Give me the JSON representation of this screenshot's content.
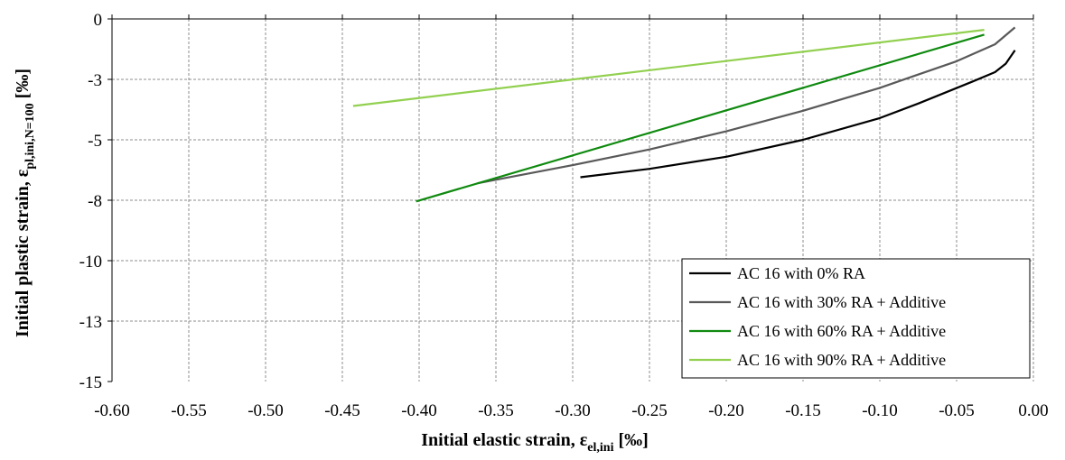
{
  "chart_data": {
    "type": "line",
    "title": "",
    "xlabel": {
      "main": "Initial elastic strain, ε",
      "sub": "el,ini",
      "unit": " [‰]"
    },
    "ylabel": {
      "main": "Initial plastic strain, ε",
      "sub": "pl,ini,N=100",
      "unit": " [‰]"
    },
    "xlim": [
      -0.6,
      0.0
    ],
    "ylim": [
      -15,
      0
    ],
    "x_ticks": [
      -0.6,
      -0.55,
      -0.5,
      -0.45,
      -0.4,
      -0.35,
      -0.3,
      -0.25,
      -0.2,
      -0.15,
      -0.1,
      -0.05,
      0.0
    ],
    "x_tick_labels": [
      "-0.60",
      "-0.55",
      "-0.50",
      "-0.45",
      "-0.40",
      "-0.35",
      "-0.30",
      "-0.25",
      "-0.20",
      "-0.15",
      "-0.10",
      "-0.05",
      "0.00"
    ],
    "y_ticks": [
      0,
      -2.5,
      -5,
      -7.5,
      -10,
      -12.5,
      -15
    ],
    "y_tick_labels": [
      "0",
      "-3",
      "-5",
      "-8",
      "-10",
      "-13",
      "-15"
    ],
    "grid": true,
    "legend_position": "bottom-right",
    "series": [
      {
        "name": "AC 16 with 0% RA",
        "color": "#000000",
        "points": [
          [
            -0.295,
            -6.55
          ],
          [
            -0.25,
            -6.2
          ],
          [
            -0.2,
            -5.7
          ],
          [
            -0.15,
            -5.0
          ],
          [
            -0.1,
            -4.1
          ],
          [
            -0.075,
            -3.5
          ],
          [
            -0.04,
            -2.6
          ],
          [
            -0.025,
            -2.2
          ],
          [
            -0.018,
            -1.85
          ],
          [
            -0.012,
            -1.3
          ]
        ]
      },
      {
        "name": "AC 16 with 30% RA + Additive",
        "color": "#595959",
        "points": [
          [
            -0.362,
            -6.8
          ],
          [
            -0.3,
            -6.05
          ],
          [
            -0.25,
            -5.4
          ],
          [
            -0.2,
            -4.65
          ],
          [
            -0.15,
            -3.8
          ],
          [
            -0.1,
            -2.85
          ],
          [
            -0.05,
            -1.75
          ],
          [
            -0.025,
            -1.05
          ],
          [
            -0.012,
            -0.35
          ]
        ]
      },
      {
        "name": "AC 16 with 60% RA + Additive",
        "color": "#0f8a0f",
        "points": [
          [
            -0.402,
            -7.55
          ],
          [
            -0.032,
            -0.65
          ]
        ]
      },
      {
        "name": "AC 16 with 90% RA + Additive",
        "color": "#92d050",
        "points": [
          [
            -0.443,
            -3.6
          ],
          [
            -0.032,
            -0.45
          ]
        ]
      }
    ]
  }
}
